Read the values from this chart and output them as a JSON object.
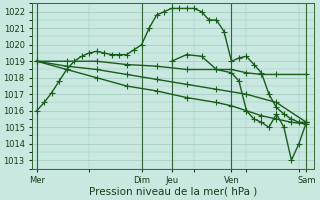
{
  "background_color": "#c8e8e0",
  "grid_color": "#a0c8c0",
  "line_color": "#1a5c1a",
  "ylim": [
    1012.5,
    1022.5
  ],
  "yticks": [
    1013,
    1014,
    1015,
    1016,
    1017,
    1018,
    1019,
    1020,
    1021,
    1022
  ],
  "xlabel": "Pression niveau de la mer( hPa )",
  "day_labels": [
    "Mer",
    "Dim",
    "Jeu",
    "Ven",
    "Sam"
  ],
  "day_positions": [
    0,
    7,
    9,
    13,
    18
  ],
  "xlim": [
    -0.3,
    18.5
  ],
  "series": [
    {
      "x": [
        0,
        0.5,
        1,
        1.5,
        2,
        2.5,
        3,
        3.5,
        4,
        4.5,
        5,
        5.5,
        6,
        6.5,
        7,
        7.5,
        8,
        8.5,
        9,
        9.5,
        10,
        10.5,
        11,
        11.5,
        12,
        12.5,
        13,
        13.5,
        14,
        14.5,
        15,
        15.5,
        16,
        16.5,
        17,
        17.5,
        18
      ],
      "y": [
        1016.0,
        1016.5,
        1017.1,
        1017.8,
        1018.5,
        1019.0,
        1019.3,
        1019.5,
        1019.6,
        1019.5,
        1019.4,
        1019.4,
        1019.4,
        1019.7,
        1020.0,
        1021.0,
        1021.8,
        1022.0,
        1022.2,
        1022.2,
        1022.2,
        1022.2,
        1022.0,
        1021.5,
        1021.5,
        1020.8,
        1019.0,
        1019.2,
        1019.3,
        1018.8,
        1018.3,
        1017.0,
        1016.2,
        1015.8,
        1015.5,
        1015.3,
        1015.3
      ]
    },
    {
      "x": [
        0,
        2,
        4,
        6,
        8,
        10,
        12,
        13,
        14,
        15,
        16,
        18
      ],
      "y": [
        1019.0,
        1019.0,
        1019.0,
        1018.8,
        1018.7,
        1018.5,
        1018.5,
        1018.5,
        1018.3,
        1018.2,
        1018.2,
        1018.2
      ]
    },
    {
      "x": [
        0,
        2,
        4,
        6,
        8,
        10,
        12,
        14,
        16,
        18
      ],
      "y": [
        1019.0,
        1018.7,
        1018.5,
        1018.2,
        1017.9,
        1017.6,
        1017.3,
        1017.0,
        1016.5,
        1015.3
      ]
    },
    {
      "x": [
        0,
        2,
        4,
        6,
        8,
        10,
        12,
        13,
        14,
        15,
        16,
        17,
        18
      ],
      "y": [
        1019.0,
        1018.5,
        1018.0,
        1017.5,
        1017.2,
        1016.8,
        1016.5,
        1016.3,
        1016.0,
        1015.7,
        1015.5,
        1015.3,
        1015.2
      ]
    },
    {
      "x": [
        9,
        10,
        11,
        12,
        13,
        13.5,
        14,
        14.5,
        15,
        15.5,
        16,
        16.5,
        17,
        17.5,
        18
      ],
      "y": [
        1019.0,
        1019.4,
        1019.3,
        1018.5,
        1018.3,
        1017.8,
        1016.0,
        1015.5,
        1015.3,
        1015.0,
        1015.8,
        1015.0,
        1013.0,
        1014.0,
        1015.3
      ]
    }
  ],
  "marker": "+",
  "markersize": 4,
  "linewidth": 1.0,
  "tick_fontsize": 6,
  "xlabel_fontsize": 7.5
}
